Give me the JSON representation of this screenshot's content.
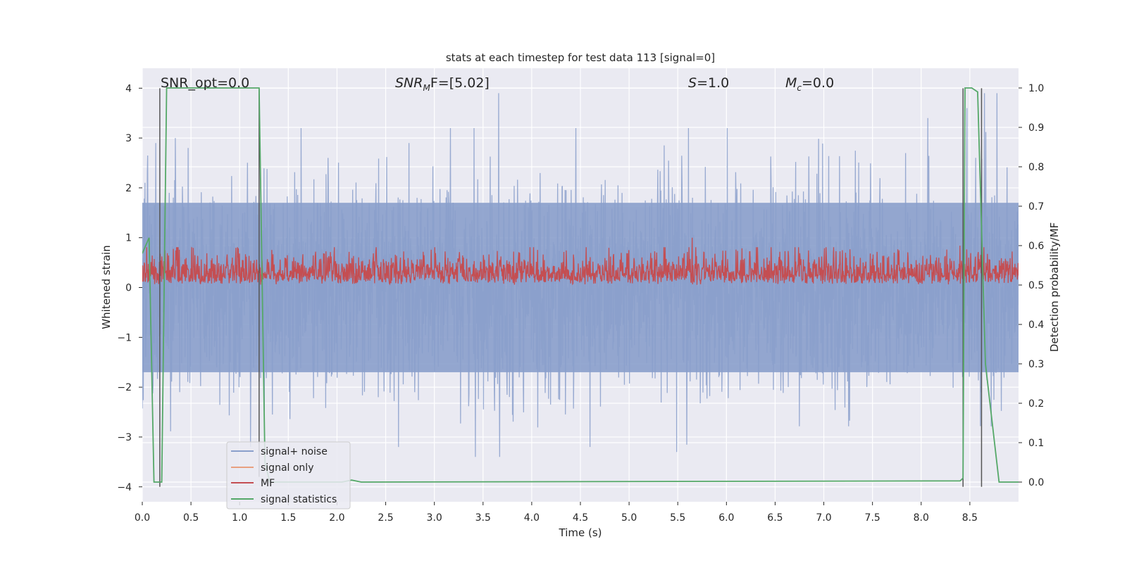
{
  "chart_data": {
    "type": "line",
    "title": "stats at each timestep for test data 113 [signal=0]",
    "xlabel": "Time (s)",
    "ylabel": "Whitened strain",
    "ylabel_right": "Detection probability/MF",
    "xlim": [
      0.0,
      9.0
    ],
    "ylim": [
      -4.3,
      4.4
    ],
    "ylim_right": [
      -0.05,
      1.05
    ],
    "xticks": [
      "0.0",
      "0.5",
      "1.0",
      "1.5",
      "2.0",
      "2.5",
      "3.0",
      "3.5",
      "4.0",
      "4.5",
      "5.0",
      "5.5",
      "6.0",
      "6.5",
      "7.0",
      "7.5",
      "8.0",
      "8.5"
    ],
    "yticks": [
      "4",
      "3",
      "2",
      "1",
      "0",
      "−1",
      "−2",
      "−3",
      "−4"
    ],
    "yticks_right": [
      "1.0",
      "0.9",
      "0.8",
      "0.7",
      "0.6",
      "0.5",
      "0.4",
      "0.3",
      "0.2",
      "0.1",
      "0.0"
    ],
    "grid": true,
    "legend_placement": "lower-left",
    "annotations": {
      "snr_opt": "SNR_opt=0.0",
      "snr_mf_base": "SNR",
      "snr_mf_sub": "M",
      "snr_mf_rest": "F=[5.02]",
      "s_var": "S",
      "s_rest": "=1.0",
      "mc_var": "M",
      "mc_sub": "c",
      "mc_rest": "=0.0"
    },
    "series": [
      {
        "name": "signal+ noise",
        "color": "#8a9fcb",
        "description_values": "dense gaussian noise, mostly within ±1.7, peaks to about ±4",
        "noise_band": [
          -1.7,
          1.7
        ],
        "peaks": [
          [
            0.14,
            2.9
          ],
          [
            0.34,
            3.0
          ],
          [
            0.47,
            2.8
          ],
          [
            2.74,
            2.9
          ],
          [
            3.66,
            3.9
          ],
          [
            3.67,
            -3.4
          ],
          [
            5.61,
            3.2
          ],
          [
            8.07,
            3.4
          ],
          [
            8.47,
            3.6
          ],
          [
            8.65,
            3.9
          ],
          [
            8.78,
            3.9
          ],
          [
            3.42,
            -3.4
          ],
          [
            5.49,
            -3.3
          ]
        ]
      },
      {
        "name": "signal only",
        "color": "#e8a080",
        "values": []
      },
      {
        "name": "MF",
        "color": "#c44e52",
        "axis": "right",
        "base": 0.5,
        "peak_height": 0.12,
        "peaks": [
          [
            5.65,
            0.62
          ],
          [
            6.1,
            0.59
          ],
          [
            8.4,
            0.6
          ],
          [
            1.0,
            0.58
          ]
        ]
      },
      {
        "name": "signal statistics",
        "color": "#55a868",
        "axis": "right",
        "x": [
          0.0,
          0.07,
          0.12,
          0.2,
          0.25,
          1.15,
          1.2,
          1.26,
          1.31,
          2.05,
          2.15,
          2.25,
          8.4,
          8.43,
          8.45,
          8.52,
          8.58,
          8.66,
          8.8,
          9.0
        ],
        "y": [
          0.58,
          0.62,
          0.0,
          0.0,
          1.0,
          1.0,
          1.0,
          0.05,
          0.0,
          0.0,
          0.005,
          0.0,
          0.003,
          0.01,
          1.0,
          1.0,
          0.99,
          0.3,
          0.0,
          0.0
        ]
      }
    ],
    "detection_markers": [
      {
        "color": "#555555",
        "lines": [
          [
            0.18,
            -4.0,
            4.0
          ],
          [
            1.2,
            -3.8,
            4.0
          ],
          [
            8.43,
            -4.0,
            4.0
          ],
          [
            8.62,
            -4.0,
            4.0
          ]
        ]
      }
    ]
  }
}
